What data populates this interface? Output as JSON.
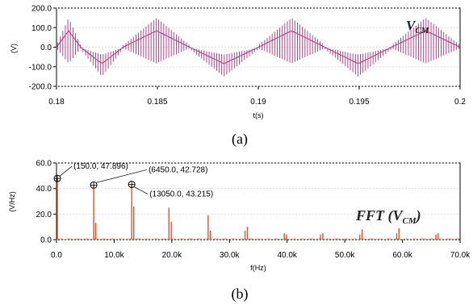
{
  "chart_data": [
    {
      "type": "line",
      "panel_caption": "(a)",
      "signal_label_main": "V",
      "signal_label_sub": "CM",
      "xlabel": "t(s)",
      "ylabel": "(V)",
      "xlim": [
        0.18,
        0.2
      ],
      "ylim": [
        -200,
        200
      ],
      "xticks": [
        "0.18",
        "0.185",
        "0.19",
        "0.195",
        "0.2"
      ],
      "yticks": [
        "200.0",
        "100.0",
        "0.0",
        "-100.0",
        "-200.0"
      ],
      "series": [
        {
          "description_type": "pwm_switching_waveform",
          "color": "#b0307a",
          "segments": [
            {
              "t_start": 0.18,
              "t_end": 0.1812,
              "polarity": "positive_high"
            },
            {
              "t_start": 0.1812,
              "t_end": 0.1833,
              "polarity": "negative_low"
            },
            {
              "t_start": 0.1833,
              "t_end": 0.1866,
              "polarity": "positive_high"
            },
            {
              "t_start": 0.1866,
              "t_end": 0.19,
              "polarity": "negative_low"
            },
            {
              "t_start": 0.19,
              "t_end": 0.1933,
              "polarity": "positive_high"
            },
            {
              "t_start": 0.1933,
              "t_end": 0.1966,
              "polarity": "negative_low"
            },
            {
              "t_start": 0.1966,
              "t_end": 0.2,
              "polarity": "positive_high"
            }
          ],
          "envelope_peak": 150,
          "envelope_low": 10,
          "pulse_count": 160
        }
      ]
    },
    {
      "type": "bar",
      "panel_caption": "(b)",
      "signal_label_prefix": "FFT (",
      "signal_label_main": "V",
      "signal_label_sub": "CM",
      "signal_label_suffix": ")",
      "xlabel": "f(Hz)",
      "ylabel": "(V/Hz)",
      "xlim": [
        0,
        70000
      ],
      "ylim": [
        0,
        60
      ],
      "xticks": [
        "0.0",
        "10.0k",
        "20.0k",
        "30.0k",
        "40.0k",
        "50.0k",
        "60.0k",
        "70.0k"
      ],
      "yticks": [
        "60.0",
        "40.0",
        "20.0",
        "0.0"
      ],
      "color": "#e8502a",
      "annotations": [
        {
          "label": "(150.0, 47.896)",
          "x": 150,
          "y": 47.896
        },
        {
          "label": "(6450.0, 42.728)",
          "x": 6450,
          "y": 42.728
        },
        {
          "label": "(13050.0, 43.215)",
          "x": 13050,
          "y": 43.215
        }
      ],
      "x": [
        150,
        6450,
        6800,
        13050,
        13400,
        19500,
        19900,
        26300,
        26700,
        32700,
        33100,
        39500,
        39900,
        45800,
        46200,
        52600,
        53000,
        59000,
        59400,
        65800,
        66200
      ],
      "values": [
        47.896,
        42.728,
        13,
        43.215,
        26,
        25,
        14,
        19,
        7,
        7,
        10,
        5,
        4,
        4,
        5,
        4,
        8,
        5,
        9,
        4,
        5
      ]
    }
  ]
}
